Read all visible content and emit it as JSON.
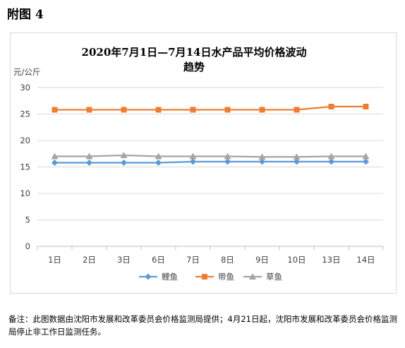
{
  "heading": "附图 4",
  "chart_data": {
    "type": "line",
    "title_lines": [
      "2020年7月1日—7月14日水产品平均价格波动",
      "趋势"
    ],
    "ylabel": "元/公斤",
    "xlabel": "",
    "categories": [
      "1日",
      "2日",
      "3日",
      "6日",
      "7日",
      "8日",
      "9日",
      "10日",
      "13日",
      "14日"
    ],
    "ylim": [
      0,
      30
    ],
    "yticks": [
      0,
      5,
      10,
      15,
      20,
      25,
      30
    ],
    "grid": true,
    "legend_position": "bottom",
    "series": [
      {
        "name": "鲤鱼",
        "color": "#5B9BD5",
        "marker": "diamond",
        "values": [
          15.8,
          15.8,
          15.8,
          15.8,
          16.0,
          16.0,
          16.0,
          16.0,
          16.0,
          16.0
        ]
      },
      {
        "name": "带鱼",
        "color": "#ED7D31",
        "marker": "square",
        "values": [
          25.8,
          25.8,
          25.8,
          25.8,
          25.8,
          25.8,
          25.8,
          25.8,
          26.4,
          26.4
        ]
      },
      {
        "name": "草鱼",
        "color": "#A5A5A5",
        "marker": "triangle",
        "values": [
          17.0,
          17.0,
          17.2,
          17.0,
          17.0,
          17.0,
          16.9,
          16.9,
          17.0,
          17.0
        ]
      }
    ]
  },
  "note": "备注：此图数据由沈阳市发展和改革委员会价格监测局提供；4月21日起，沈阳市发展和改革委员会价格监测局停止非工作日监测任务。"
}
